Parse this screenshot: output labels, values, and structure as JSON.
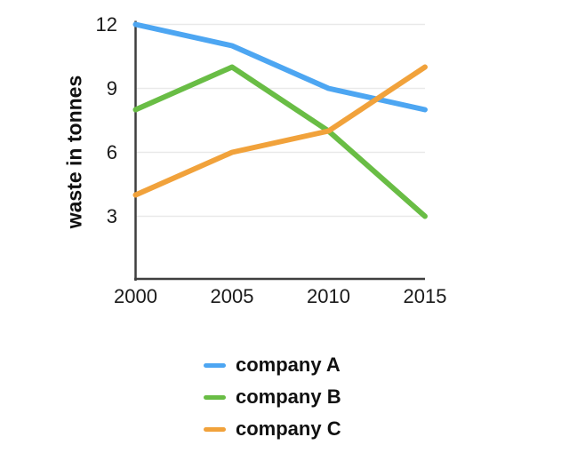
{
  "chart_data": {
    "type": "line",
    "title": "",
    "xlabel": "",
    "ylabel": "waste in tonnes",
    "x": [
      "2000",
      "2005",
      "2010",
      "2015"
    ],
    "yticks": [
      12,
      9,
      6,
      3
    ],
    "ylim": [
      0,
      12
    ],
    "grid": true,
    "legend_position": "bottom",
    "series": [
      {
        "name": "company A",
        "color": "#4DA6F2",
        "values": [
          12,
          11,
          9,
          8
        ]
      },
      {
        "name": "company B",
        "color": "#69BD45",
        "values": [
          8,
          10,
          7,
          3
        ]
      },
      {
        "name": "company C",
        "color": "#F1A23B",
        "values": [
          4,
          6,
          7,
          10
        ]
      }
    ],
    "colors": {
      "grid": "#E9E9E9",
      "axis": "#3F3F3F",
      "tick_text": "#1A1A1A",
      "background": "#FFFFFF"
    }
  }
}
